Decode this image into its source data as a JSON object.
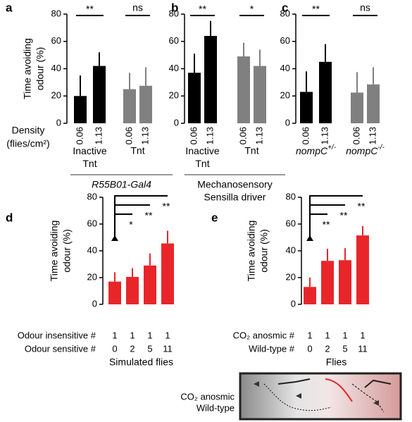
{
  "chart_data": [
    {
      "panel": "a",
      "type": "bar",
      "ylabel": [
        "Time avoiding",
        "odour (%)"
      ],
      "ylim": [
        0,
        80
      ],
      "yticks": [
        0,
        20,
        40,
        60,
        80
      ],
      "density_label": [
        "Density",
        "(flies/cm²)"
      ],
      "categories": [
        "0.06",
        "1.13"
      ],
      "series": [
        {
          "name": "Inactive Tnt",
          "color": "#000000",
          "values": [
            20,
            42
          ],
          "errors": [
            15,
            10
          ],
          "significance": "**"
        },
        {
          "name": "Tnt",
          "color": "#808080",
          "values": [
            25,
            27.5
          ],
          "errors": [
            12,
            13.5
          ],
          "significance": "ns"
        }
      ],
      "driver": [
        "R55B01-Gal4"
      ],
      "driver_italic": true
    },
    {
      "panel": "b",
      "type": "bar",
      "ylim": [
        0,
        80
      ],
      "yticks": [
        0,
        20,
        40,
        60,
        80
      ],
      "categories": [
        "0.06",
        "1.13"
      ],
      "series": [
        {
          "name": "Inactive Tnt",
          "color": "#000000",
          "values": [
            37,
            64
          ],
          "errors": [
            14,
            11
          ],
          "significance": "**"
        },
        {
          "name": "Tnt",
          "color": "#808080",
          "values": [
            49,
            42
          ],
          "errors": [
            10,
            12
          ],
          "significance": "*"
        }
      ],
      "driver": [
        "Mechanosensory",
        "Sensilla driver"
      ],
      "driver_italic": false
    },
    {
      "panel": "c",
      "type": "bar",
      "ylim": [
        0,
        80
      ],
      "yticks": [
        0,
        20,
        40,
        60,
        80
      ],
      "categories": [
        "0.06",
        "1.13"
      ],
      "series": [
        {
          "name": "nompC",
          "name_sup": "+/-",
          "color": "#000000",
          "values": [
            23,
            45
          ],
          "errors": [
            15,
            13
          ],
          "significance": "**"
        },
        {
          "name": "nompC",
          "name_sup": "-/-",
          "color": "#808080",
          "values": [
            22.5,
            28.5
          ],
          "errors": [
            15,
            12.5
          ],
          "significance": "ns"
        }
      ],
      "name_italic": true
    },
    {
      "panel": "d",
      "type": "bar",
      "ylabel": [
        "Time avoiding",
        "odour (%)"
      ],
      "ylim": [
        0,
        80
      ],
      "yticks": [
        0,
        20,
        40,
        60,
        80
      ],
      "color": "#e8262a",
      "values": [
        17,
        20.5,
        29,
        45.5
      ],
      "errors": [
        7,
        6.5,
        9,
        9.5
      ],
      "rows": [
        {
          "label": "Odour insensitive #",
          "color": "#e8262a",
          "values": [
            1,
            1,
            1,
            1
          ]
        },
        {
          "label": "Odour sensitive #",
          "color": "#000000",
          "values": [
            0,
            2,
            5,
            11
          ]
        }
      ],
      "xlabel": "Simulated flies",
      "significance": [
        "*",
        "**",
        "**"
      ]
    },
    {
      "panel": "e",
      "type": "bar",
      "ylabel": [
        "Time avoiding",
        "odour (%)"
      ],
      "ylim": [
        0,
        80
      ],
      "yticks": [
        0,
        20,
        40,
        60,
        80
      ],
      "color": "#e8262a",
      "values": [
        13,
        32.5,
        33,
        51.5
      ],
      "errors": [
        7,
        9,
        9,
        7
      ],
      "rows": [
        {
          "label": "CO₂ anosmic #",
          "color": "#e8262a",
          "values": [
            1,
            1,
            1,
            1
          ]
        },
        {
          "label": "Wild-type #",
          "color": "#000000",
          "values": [
            0,
            2,
            5,
            11
          ]
        }
      ],
      "xlabel": "Flies",
      "significance": [
        "**",
        "**",
        "**"
      ]
    }
  ],
  "inset": {
    "labels": [
      {
        "text": "CO₂ anosmic",
        "color": "#e8262a"
      },
      {
        "text": "Wild-type",
        "color": "#000000"
      }
    ]
  }
}
